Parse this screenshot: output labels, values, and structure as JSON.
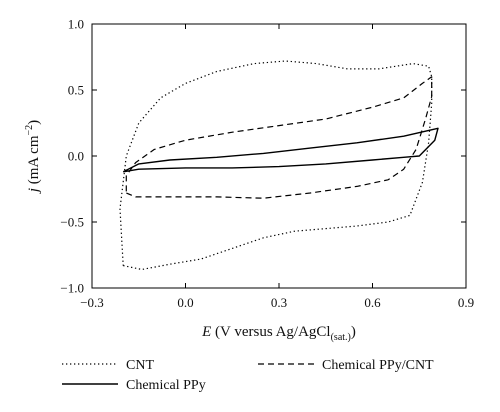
{
  "chart_data": {
    "type": "line",
    "xlabel": {
      "symbol": "E",
      "text": " (V versus Ag/AgCl",
      "sub": "(sat.)",
      "tail": ")"
    },
    "ylabel": {
      "symbol": "j",
      "text": " (mA cm",
      "sup": "−2",
      "tail": ")"
    },
    "xlim": [
      -0.3,
      0.9
    ],
    "ylim": [
      -1.0,
      1.0
    ],
    "xticks": [
      -0.3,
      0.0,
      0.3,
      0.6,
      0.9
    ],
    "xtick_labels": [
      "−0.3",
      "0.0",
      "0.3",
      "0.6",
      "0.9"
    ],
    "yticks": [
      -1.0,
      -0.5,
      0.0,
      0.5,
      1.0
    ],
    "ytick_labels": [
      "−1.0",
      "−0.5",
      "0.0",
      "0.5",
      "1.0"
    ],
    "grid": false,
    "legend_position": "bottom",
    "series": [
      {
        "name": "CNT",
        "style": "dotted",
        "points": [
          [
            -0.2,
            -0.83
          ],
          [
            -0.14,
            -0.86
          ],
          [
            -0.05,
            -0.82
          ],
          [
            0.05,
            -0.78
          ],
          [
            0.15,
            -0.7
          ],
          [
            0.25,
            -0.62
          ],
          [
            0.35,
            -0.57
          ],
          [
            0.45,
            -0.55
          ],
          [
            0.55,
            -0.53
          ],
          [
            0.65,
            -0.5
          ],
          [
            0.72,
            -0.45
          ],
          [
            0.76,
            -0.2
          ],
          [
            0.78,
            0.1
          ],
          [
            0.79,
            0.4
          ],
          [
            0.79,
            0.6
          ],
          [
            0.78,
            0.68
          ],
          [
            0.73,
            0.7
          ],
          [
            0.62,
            0.66
          ],
          [
            0.52,
            0.66
          ],
          [
            0.42,
            0.7
          ],
          [
            0.32,
            0.72
          ],
          [
            0.22,
            0.7
          ],
          [
            0.1,
            0.64
          ],
          [
            0.0,
            0.55
          ],
          [
            -0.08,
            0.44
          ],
          [
            -0.15,
            0.25
          ],
          [
            -0.19,
            0.0
          ],
          [
            -0.21,
            -0.4
          ],
          [
            -0.2,
            -0.83
          ]
        ]
      },
      {
        "name": "Chemical PPy/CNT",
        "style": "dashed",
        "points": [
          [
            -0.19,
            -0.28
          ],
          [
            -0.16,
            -0.31
          ],
          [
            -0.05,
            -0.31
          ],
          [
            0.1,
            -0.31
          ],
          [
            0.25,
            -0.32
          ],
          [
            0.4,
            -0.28
          ],
          [
            0.55,
            -0.23
          ],
          [
            0.65,
            -0.18
          ],
          [
            0.7,
            -0.1
          ],
          [
            0.74,
            0.05
          ],
          [
            0.77,
            0.28
          ],
          [
            0.79,
            0.45
          ],
          [
            0.79,
            0.6
          ],
          [
            0.76,
            0.55
          ],
          [
            0.7,
            0.44
          ],
          [
            0.6,
            0.37
          ],
          [
            0.45,
            0.28
          ],
          [
            0.3,
            0.23
          ],
          [
            0.15,
            0.18
          ],
          [
            0.0,
            0.12
          ],
          [
            -0.1,
            0.05
          ],
          [
            -0.16,
            -0.05
          ],
          [
            -0.19,
            -0.15
          ],
          [
            -0.19,
            -0.28
          ]
        ]
      },
      {
        "name": "Chemical PPy",
        "style": "solid",
        "points": [
          [
            -0.2,
            -0.12
          ],
          [
            -0.15,
            -0.1
          ],
          [
            0.0,
            -0.09
          ],
          [
            0.15,
            -0.09
          ],
          [
            0.3,
            -0.08
          ],
          [
            0.45,
            -0.06
          ],
          [
            0.6,
            -0.03
          ],
          [
            0.7,
            -0.01
          ],
          [
            0.75,
            0.0
          ],
          [
            0.8,
            0.12
          ],
          [
            0.81,
            0.21
          ],
          [
            0.7,
            0.15
          ],
          [
            0.55,
            0.1
          ],
          [
            0.4,
            0.06
          ],
          [
            0.25,
            0.02
          ],
          [
            0.1,
            -0.01
          ],
          [
            -0.05,
            -0.03
          ],
          [
            -0.15,
            -0.06
          ],
          [
            -0.2,
            -0.12
          ]
        ]
      }
    ],
    "legend": [
      {
        "label": "CNT",
        "style": "dotted"
      },
      {
        "label": "Chemical PPy/CNT",
        "style": "dashed"
      },
      {
        "label": "Chemical PPy",
        "style": "solid"
      }
    ]
  }
}
